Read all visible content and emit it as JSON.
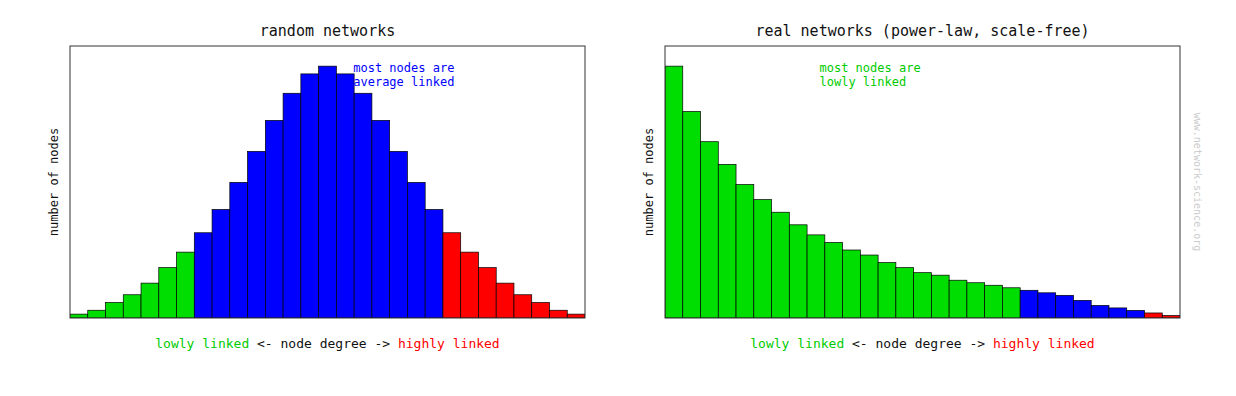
{
  "chart_data": [
    {
      "type": "bar",
      "title": "random networks",
      "y_label": "number of nodes",
      "x_label": [
        {
          "text": "lowly linked",
          "color": "#00cc00"
        },
        {
          "text": " <- node degree -> ",
          "color": "#111111"
        },
        {
          "text": "highly linked",
          "color": "#ff0000"
        }
      ],
      "annotations": [
        {
          "text": "most nodes are\naverage linked",
          "color": "#0000ff"
        }
      ],
      "categories": [
        null,
        null,
        null,
        null,
        null,
        null,
        null,
        null,
        null,
        null,
        null,
        null,
        null,
        null,
        null,
        null,
        null,
        null,
        null,
        null,
        null,
        null,
        null,
        null,
        null,
        null,
        null,
        null,
        null
      ],
      "values": [
        1,
        2,
        4,
        6,
        9,
        13,
        17,
        22,
        28,
        35,
        43,
        51,
        58,
        63,
        65,
        63,
        58,
        51,
        43,
        35,
        28,
        22,
        17,
        13,
        9,
        6,
        4,
        2,
        1
      ],
      "colors": [
        "#00dd00",
        "#00dd00",
        "#00dd00",
        "#00dd00",
        "#00dd00",
        "#00dd00",
        "#00dd00",
        "#0000ff",
        "#0000ff",
        "#0000ff",
        "#0000ff",
        "#0000ff",
        "#0000ff",
        "#0000ff",
        "#0000ff",
        "#0000ff",
        "#0000ff",
        "#0000ff",
        "#0000ff",
        "#0000ff",
        "#0000ff",
        "#ff0000",
        "#ff0000",
        "#ff0000",
        "#ff0000",
        "#ff0000",
        "#ff0000",
        "#ff0000",
        "#ff0000"
      ],
      "ylim": [
        0,
        70.2
      ],
      "tick_labels": false,
      "grid": false
    },
    {
      "type": "bar",
      "title": "real networks (power-law, scale-free)",
      "y_label": "number of nodes",
      "x_label": [
        {
          "text": "lowly linked",
          "color": "#00cc00"
        },
        {
          "text": " <- node degree -> ",
          "color": "#111111"
        },
        {
          "text": "highly linked",
          "color": "#ff0000"
        }
      ],
      "annotations": [
        {
          "text": "most nodes are\nlowly linked",
          "color": "#00cc00"
        },
        {
          "text": "www.network-science.org",
          "color": "#cccccc"
        }
      ],
      "categories": [
        null,
        null,
        null,
        null,
        null,
        null,
        null,
        null,
        null,
        null,
        null,
        null,
        null,
        null,
        null,
        null,
        null,
        null,
        null,
        null,
        null,
        null,
        null,
        null,
        null,
        null,
        null,
        null,
        null
      ],
      "values": [
        100,
        82,
        70,
        61,
        53,
        47,
        42,
        37,
        33,
        30,
        27,
        25,
        22,
        20,
        18,
        17,
        15,
        14,
        13,
        12,
        11,
        10,
        9,
        7,
        5,
        4,
        3,
        2,
        1
      ],
      "colors": [
        "#00dd00",
        "#00dd00",
        "#00dd00",
        "#00dd00",
        "#00dd00",
        "#00dd00",
        "#00dd00",
        "#00dd00",
        "#00dd00",
        "#00dd00",
        "#00dd00",
        "#00dd00",
        "#00dd00",
        "#00dd00",
        "#00dd00",
        "#00dd00",
        "#00dd00",
        "#00dd00",
        "#00dd00",
        "#00dd00",
        "#0000ff",
        "#0000ff",
        "#0000ff",
        "#0000ff",
        "#0000ff",
        "#0000ff",
        "#0000ff",
        "#ff0000",
        "#ff0000"
      ],
      "ylim": [
        0,
        108
      ],
      "tick_labels": false,
      "grid": false
    }
  ]
}
